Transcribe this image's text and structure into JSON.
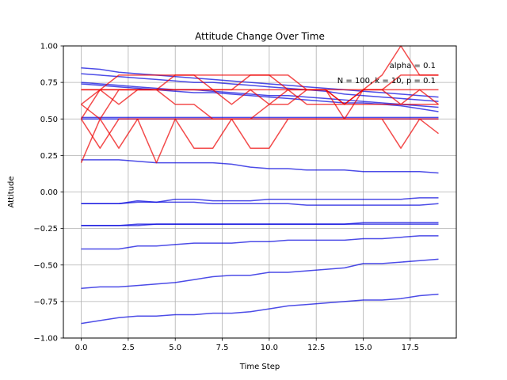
{
  "chart_data": {
    "type": "line",
    "title": "Attitude Change Over Time",
    "xlabel": "Time Step",
    "ylabel": "Attitude",
    "xlim": [
      -0.95,
      19.95
    ],
    "ylim": [
      -1.0,
      1.0
    ],
    "xticks": [
      0,
      2.5,
      5,
      7.5,
      10,
      12.5,
      15,
      17.5
    ],
    "xtick_labels": [
      "0.0",
      "2.5",
      "5.0",
      "7.5",
      "10.0",
      "12.5",
      "15.0",
      "17.5"
    ],
    "yticks": [
      -1.0,
      -0.75,
      -0.5,
      -0.25,
      0.0,
      0.25,
      0.5,
      0.75,
      1.0
    ],
    "ytick_labels": [
      "−1.00",
      "−0.75",
      "−0.50",
      "−0.25",
      "0.00",
      "0.25",
      "0.50",
      "0.75",
      "1.00"
    ],
    "grid": true,
    "annotations": [
      "alpha = 0.1",
      "N = 100, k = 10, p = 0.1"
    ],
    "colors": {
      "blue": "#0000dd",
      "red": "#ee0000"
    },
    "x": [
      0,
      1,
      2,
      3,
      4,
      5,
      6,
      7,
      8,
      9,
      10,
      11,
      12,
      13,
      14,
      15,
      16,
      17,
      18,
      19
    ],
    "series": [
      {
        "color": "blue",
        "values": [
          0.85,
          0.84,
          0.82,
          0.81,
          0.8,
          0.79,
          0.78,
          0.77,
          0.76,
          0.75,
          0.74,
          0.73,
          0.72,
          0.71,
          0.7,
          0.69,
          0.68,
          0.67,
          0.66,
          0.65
        ]
      },
      {
        "color": "blue",
        "values": [
          0.81,
          0.8,
          0.79,
          0.78,
          0.77,
          0.76,
          0.75,
          0.75,
          0.74,
          0.73,
          0.72,
          0.71,
          0.7,
          0.69,
          0.67,
          0.66,
          0.65,
          0.64,
          0.63,
          0.62
        ]
      },
      {
        "color": "blue",
        "values": [
          0.75,
          0.74,
          0.73,
          0.72,
          0.71,
          0.7,
          0.7,
          0.69,
          0.68,
          0.67,
          0.66,
          0.66,
          0.65,
          0.64,
          0.63,
          0.62,
          0.61,
          0.6,
          0.59,
          0.58
        ]
      },
      {
        "color": "blue",
        "values": [
          0.74,
          0.73,
          0.72,
          0.71,
          0.7,
          0.69,
          0.68,
          0.68,
          0.67,
          0.66,
          0.65,
          0.64,
          0.63,
          0.62,
          0.61,
          0.61,
          0.6,
          0.59,
          0.57,
          0.55
        ]
      },
      {
        "color": "blue",
        "values": [
          0.51,
          0.51,
          0.51,
          0.51,
          0.51,
          0.51,
          0.51,
          0.51,
          0.51,
          0.51,
          0.51,
          0.51,
          0.51,
          0.51,
          0.51,
          0.51,
          0.51,
          0.51,
          0.51,
          0.51
        ]
      },
      {
        "color": "blue",
        "values": [
          0.5,
          0.5,
          0.5,
          0.5,
          0.5,
          0.5,
          0.5,
          0.5,
          0.5,
          0.5,
          0.5,
          0.5,
          0.5,
          0.5,
          0.5,
          0.5,
          0.5,
          0.5,
          0.5,
          0.5
        ]
      },
      {
        "color": "blue",
        "values": [
          0.22,
          0.22,
          0.22,
          0.21,
          0.2,
          0.2,
          0.2,
          0.2,
          0.19,
          0.17,
          0.16,
          0.16,
          0.15,
          0.15,
          0.15,
          0.14,
          0.14,
          0.14,
          0.14,
          0.13
        ]
      },
      {
        "color": "blue",
        "values": [
          -0.08,
          -0.08,
          -0.08,
          -0.06,
          -0.07,
          -0.05,
          -0.05,
          -0.06,
          -0.06,
          -0.06,
          -0.05,
          -0.05,
          -0.05,
          -0.05,
          -0.05,
          -0.05,
          -0.05,
          -0.05,
          -0.04,
          -0.04
        ]
      },
      {
        "color": "blue",
        "values": [
          -0.08,
          -0.08,
          -0.08,
          -0.07,
          -0.07,
          -0.07,
          -0.07,
          -0.08,
          -0.08,
          -0.08,
          -0.08,
          -0.08,
          -0.09,
          -0.09,
          -0.09,
          -0.09,
          -0.09,
          -0.09,
          -0.09,
          -0.08
        ]
      },
      {
        "color": "blue",
        "values": [
          -0.23,
          -0.23,
          -0.23,
          -0.23,
          -0.22,
          -0.22,
          -0.22,
          -0.22,
          -0.22,
          -0.22,
          -0.22,
          -0.22,
          -0.22,
          -0.22,
          -0.22,
          -0.21,
          -0.21,
          -0.21,
          -0.21,
          -0.21
        ]
      },
      {
        "color": "blue",
        "values": [
          -0.23,
          -0.23,
          -0.23,
          -0.22,
          -0.22,
          -0.22,
          -0.22,
          -0.22,
          -0.22,
          -0.22,
          -0.22,
          -0.22,
          -0.22,
          -0.22,
          -0.22,
          -0.22,
          -0.22,
          -0.22,
          -0.22,
          -0.22
        ]
      },
      {
        "color": "blue",
        "values": [
          -0.39,
          -0.39,
          -0.39,
          -0.37,
          -0.37,
          -0.36,
          -0.35,
          -0.35,
          -0.35,
          -0.34,
          -0.34,
          -0.33,
          -0.33,
          -0.33,
          -0.33,
          -0.32,
          -0.32,
          -0.31,
          -0.3,
          -0.3
        ]
      },
      {
        "color": "blue",
        "values": [
          -0.66,
          -0.65,
          -0.65,
          -0.64,
          -0.63,
          -0.62,
          -0.6,
          -0.58,
          -0.57,
          -0.57,
          -0.55,
          -0.55,
          -0.54,
          -0.53,
          -0.52,
          -0.49,
          -0.49,
          -0.48,
          -0.47,
          -0.46
        ]
      },
      {
        "color": "blue",
        "values": [
          -0.9,
          -0.88,
          -0.86,
          -0.85,
          -0.85,
          -0.84,
          -0.84,
          -0.83,
          -0.83,
          -0.82,
          -0.8,
          -0.78,
          -0.77,
          -0.76,
          -0.75,
          -0.74,
          -0.74,
          -0.73,
          -0.71,
          -0.7
        ]
      },
      {
        "color": "red",
        "values": [
          0.7,
          0.7,
          0.8,
          0.8,
          0.8,
          0.8,
          0.8,
          0.7,
          0.7,
          0.8,
          0.8,
          0.7,
          0.7,
          0.7,
          0.7,
          0.7,
          0.7,
          0.8,
          0.8,
          0.8
        ]
      },
      {
        "color": "red",
        "values": [
          0.6,
          0.7,
          0.7,
          0.7,
          0.7,
          0.8,
          0.8,
          0.8,
          0.8,
          0.8,
          0.8,
          0.8,
          0.7,
          0.7,
          0.6,
          0.7,
          0.8,
          1.0,
          0.8,
          0.8
        ]
      },
      {
        "color": "red",
        "values": [
          0.6,
          0.5,
          0.7,
          0.7,
          0.7,
          0.7,
          0.7,
          0.7,
          0.6,
          0.7,
          0.6,
          0.6,
          0.7,
          0.7,
          0.6,
          0.7,
          0.7,
          0.6,
          0.7,
          0.6
        ]
      },
      {
        "color": "red",
        "values": [
          0.5,
          0.7,
          0.6,
          0.7,
          0.7,
          0.6,
          0.6,
          0.5,
          0.5,
          0.5,
          0.6,
          0.7,
          0.6,
          0.6,
          0.6,
          0.6,
          0.6,
          0.6,
          0.6,
          0.6
        ]
      },
      {
        "color": "red",
        "values": [
          0.5,
          0.3,
          0.5,
          0.5,
          0.2,
          0.5,
          0.5,
          0.5,
          0.5,
          0.5,
          0.5,
          0.5,
          0.5,
          0.5,
          0.5,
          0.5,
          0.5,
          0.5,
          0.5,
          0.5
        ]
      },
      {
        "color": "red",
        "values": [
          0.2,
          0.5,
          0.3,
          0.5,
          0.5,
          0.5,
          0.3,
          0.3,
          0.5,
          0.3,
          0.3,
          0.5,
          0.5,
          0.5,
          0.5,
          0.5,
          0.5,
          0.3,
          0.5,
          0.4
        ]
      },
      {
        "color": "red",
        "values": [
          0.7,
          0.7,
          0.7,
          0.7,
          0.7,
          0.7,
          0.7,
          0.7,
          0.7,
          0.7,
          0.7,
          0.7,
          0.7,
          0.7,
          0.5,
          0.7,
          0.7,
          0.7,
          0.7,
          0.7
        ]
      }
    ]
  }
}
